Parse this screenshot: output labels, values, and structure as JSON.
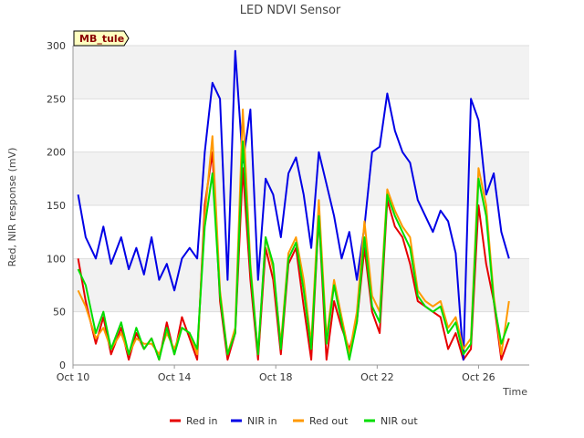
{
  "chart_data": {
    "type": "line",
    "title": "LED NDVI Sensor",
    "xlabel": "Time",
    "ylabel": "Red, NIR response (mV)",
    "badge": "MB_tule",
    "x_ticks": [
      "Oct 10",
      "Oct 14",
      "Oct 18",
      "Oct 22",
      "Oct 26"
    ],
    "x_tick_days": [
      10,
      14,
      18,
      22,
      26
    ],
    "xlim": [
      10,
      28
    ],
    "y_ticks": [
      0,
      50,
      100,
      150,
      200,
      250,
      300
    ],
    "ylim": [
      0,
      300
    ],
    "grid": true,
    "legend_position": "bottom",
    "x": [
      10.2,
      10.5,
      10.9,
      11.2,
      11.5,
      11.9,
      12.2,
      12.5,
      12.8,
      13.1,
      13.4,
      13.7,
      14.0,
      14.3,
      14.6,
      14.9,
      15.2,
      15.5,
      15.8,
      16.1,
      16.4,
      16.7,
      17.0,
      17.3,
      17.6,
      17.9,
      18.2,
      18.5,
      18.8,
      19.1,
      19.4,
      19.7,
      20.0,
      20.3,
      20.6,
      20.9,
      21.2,
      21.5,
      21.8,
      22.1,
      22.4,
      22.7,
      23.0,
      23.3,
      23.6,
      23.9,
      24.2,
      24.5,
      24.8,
      25.1,
      25.4,
      25.7,
      26.0,
      26.3,
      26.6,
      26.9,
      27.2
    ],
    "series": [
      {
        "name": "Red in",
        "color": "#e60000",
        "values": [
          100,
          60,
          20,
          45,
          10,
          35,
          5,
          30,
          15,
          25,
          5,
          40,
          10,
          45,
          25,
          5,
          150,
          200,
          60,
          5,
          30,
          185,
          80,
          5,
          110,
          80,
          10,
          95,
          110,
          55,
          5,
          140,
          5,
          60,
          35,
          15,
          40,
          110,
          50,
          30,
          155,
          130,
          120,
          95,
          60,
          55,
          50,
          45,
          15,
          30,
          5,
          15,
          150,
          95,
          60,
          5,
          25
        ]
      },
      {
        "name": "NIR in",
        "color": "#0000e6",
        "values": [
          160,
          120,
          100,
          130,
          95,
          120,
          90,
          110,
          85,
          120,
          80,
          95,
          70,
          100,
          110,
          100,
          200,
          265,
          250,
          80,
          295,
          190,
          240,
          80,
          175,
          160,
          120,
          180,
          195,
          160,
          110,
          200,
          170,
          140,
          100,
          125,
          80,
          130,
          200,
          205,
          255,
          220,
          200,
          190,
          155,
          140,
          125,
          145,
          135,
          105,
          5,
          250,
          230,
          160,
          180,
          125,
          100
        ]
      },
      {
        "name": "Red out",
        "color": "#ff9900",
        "values": [
          70,
          55,
          25,
          35,
          15,
          30,
          10,
          25,
          20,
          20,
          10,
          30,
          15,
          35,
          30,
          10,
          140,
          215,
          70,
          10,
          35,
          240,
          95,
          10,
          120,
          90,
          20,
          105,
          120,
          80,
          20,
          155,
          25,
          80,
          45,
          10,
          50,
          135,
          65,
          50,
          165,
          145,
          130,
          120,
          70,
          60,
          55,
          60,
          35,
          45,
          15,
          25,
          185,
          150,
          65,
          10,
          60
        ]
      },
      {
        "name": "NIR out",
        "color": "#00dd00",
        "values": [
          90,
          75,
          30,
          50,
          15,
          40,
          10,
          35,
          15,
          25,
          5,
          35,
          10,
          35,
          30,
          15,
          130,
          180,
          65,
          10,
          30,
          210,
          90,
          10,
          120,
          95,
          15,
          100,
          115,
          70,
          15,
          140,
          20,
          75,
          40,
          5,
          40,
          120,
          55,
          40,
          160,
          140,
          125,
          110,
          65,
          55,
          50,
          55,
          30,
          40,
          10,
          20,
          175,
          140,
          60,
          20,
          40
        ]
      }
    ]
  }
}
